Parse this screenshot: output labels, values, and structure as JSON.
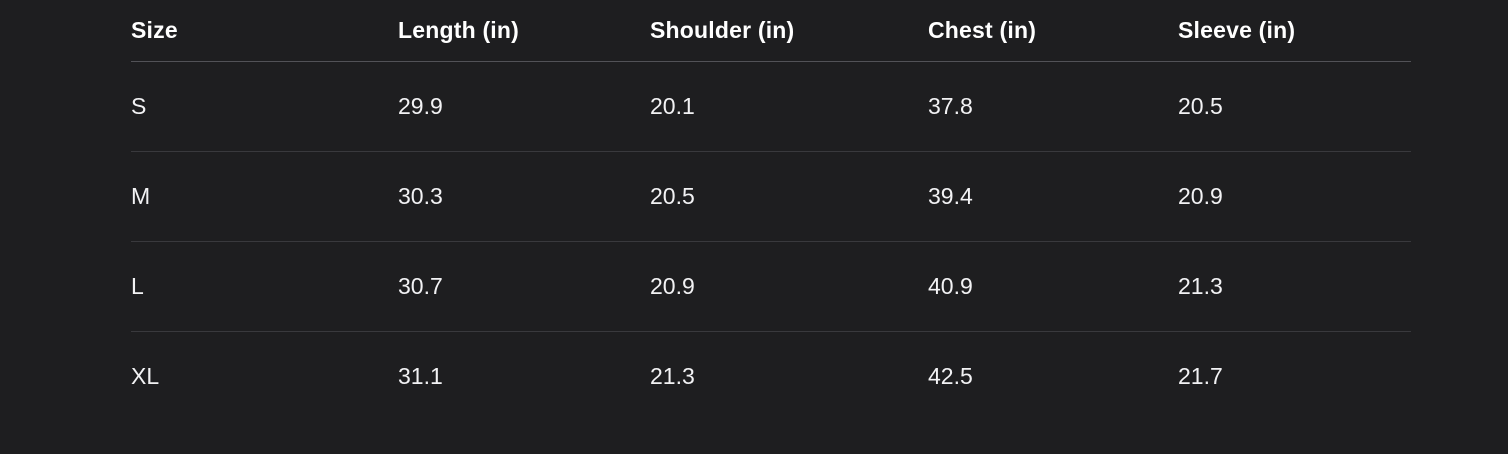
{
  "table": {
    "name": "size-chart",
    "columns": [
      "Size",
      "Length (in)",
      "Shoulder (in)",
      "Chest (in)",
      "Sleeve (in)"
    ],
    "rows": [
      [
        "S",
        "29.9",
        "20.1",
        "37.8",
        "20.5"
      ],
      [
        "M",
        "30.3",
        "20.5",
        "39.4",
        "20.9"
      ],
      [
        "L",
        "30.7",
        "20.9",
        "40.9",
        "21.3"
      ],
      [
        "XL",
        "31.1",
        "21.3",
        "42.5",
        "21.7"
      ]
    ]
  },
  "colors": {
    "background": "#1e1e20",
    "text": "#f2f2f4",
    "header_text": "#ffffff",
    "header_divider": "#525257",
    "row_divider": "#39393d"
  }
}
